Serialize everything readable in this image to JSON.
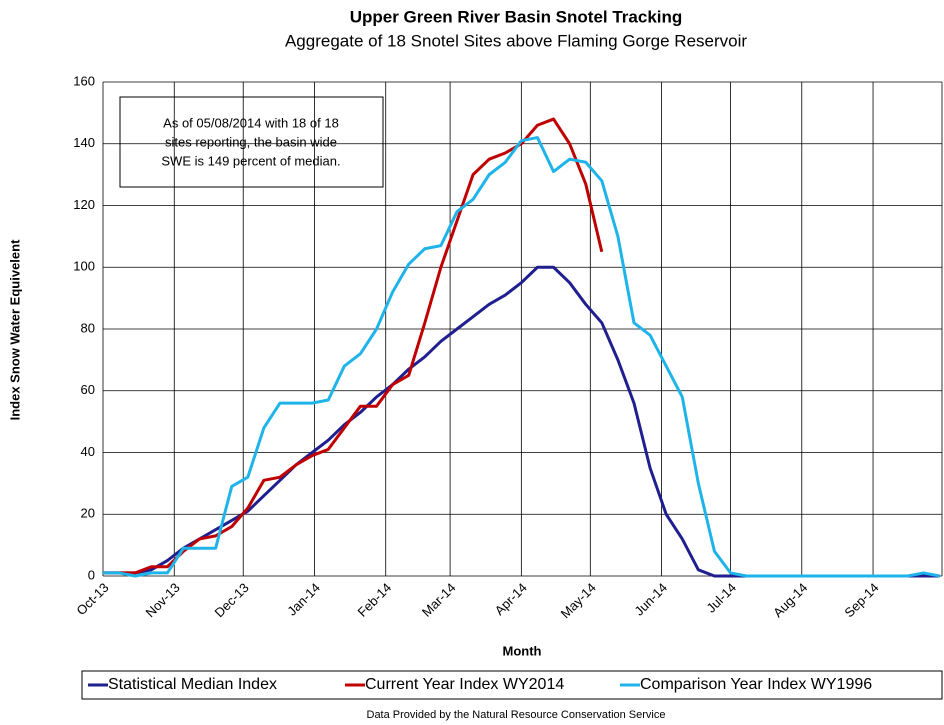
{
  "chart_data": {
    "type": "line",
    "title": "Upper Green River Basin Snotel Tracking",
    "subtitle": "Aggregate of 18 Snotel Sites above Flaming Gorge Reservoir",
    "x_label": "Month",
    "y_label": "Index Snow Water Equivelent",
    "annotation": [
      "As of 05/08/2014 with 18 of 18",
      "sites reporting, the basin wide",
      "SWE is 149 percent of median."
    ],
    "footer": "Data Provided by the Natural Resource Conservation Service",
    "x": [
      0,
      7,
      14,
      21,
      28,
      35,
      42,
      49,
      56,
      63,
      70,
      77,
      84,
      91,
      98,
      105,
      112,
      119,
      126,
      133,
      140,
      147,
      154,
      161,
      168,
      175,
      182,
      189,
      196,
      203,
      210,
      217,
      224,
      231,
      238,
      245,
      252,
      259,
      266,
      273,
      280,
      287,
      294,
      301,
      308,
      315,
      322,
      329,
      336,
      343,
      350,
      357,
      364
    ],
    "xlim": [
      0,
      365
    ],
    "xticks": [
      {
        "value": 0,
        "label": "Oct-13"
      },
      {
        "value": 31,
        "label": "Nov-13"
      },
      {
        "value": 61,
        "label": "Dec-13"
      },
      {
        "value": 92,
        "label": "Jan-14"
      },
      {
        "value": 123,
        "label": "Feb-14"
      },
      {
        "value": 151,
        "label": "Mar-14"
      },
      {
        "value": 182,
        "label": "Apr-14"
      },
      {
        "value": 212,
        "label": "May-14"
      },
      {
        "value": 243,
        "label": "Jun-14"
      },
      {
        "value": 273,
        "label": "Jul-14"
      },
      {
        "value": 304,
        "label": "Aug-14"
      },
      {
        "value": 335,
        "label": "Sep-14"
      }
    ],
    "ylim": [
      0,
      160
    ],
    "yticks": [
      0,
      20,
      40,
      60,
      80,
      100,
      120,
      140,
      160
    ],
    "grid": true,
    "series": [
      {
        "name": "Statistical Median Index",
        "color": "#1f1f8f",
        "values": [
          1,
          1,
          1,
          2,
          5,
          9,
          12,
          15,
          18,
          21,
          26,
          31,
          36,
          40,
          44,
          49,
          53,
          58,
          62,
          67,
          71,
          76,
          80,
          84,
          88,
          91,
          95,
          100,
          100,
          95,
          88,
          82,
          70,
          56,
          35,
          20,
          12,
          2,
          0,
          0,
          0,
          0,
          0,
          0,
          0,
          0,
          0,
          0,
          0,
          0,
          0,
          0,
          0
        ]
      },
      {
        "name": "Current Year Index WY2014",
        "color": "#c00000",
        "values": [
          1,
          1,
          1,
          3,
          3,
          8,
          12,
          13,
          16,
          22,
          31,
          32,
          36,
          39,
          41,
          48,
          55,
          55,
          62,
          65,
          82,
          100,
          115,
          130,
          135,
          137,
          140,
          146,
          148,
          140,
          127,
          105,
          null,
          null,
          null,
          null,
          null,
          null,
          null,
          null,
          null,
          null,
          null,
          null,
          null,
          null,
          null,
          null,
          null,
          null,
          null,
          null,
          null
        ]
      },
      {
        "name": "Comparison Year Index WY1996",
        "color": "#1eb4ea",
        "values": [
          1,
          1,
          0,
          1,
          1,
          9,
          9,
          9,
          29,
          32,
          48,
          56,
          56,
          56,
          57,
          68,
          72,
          80,
          92,
          101,
          106,
          107,
          118,
          122,
          130,
          134,
          141,
          142,
          131,
          135,
          134,
          128,
          110,
          82,
          78,
          68,
          58,
          30,
          8,
          1,
          0,
          0,
          0,
          0,
          0,
          0,
          0,
          0,
          0,
          0,
          0,
          1,
          0
        ]
      }
    ]
  }
}
